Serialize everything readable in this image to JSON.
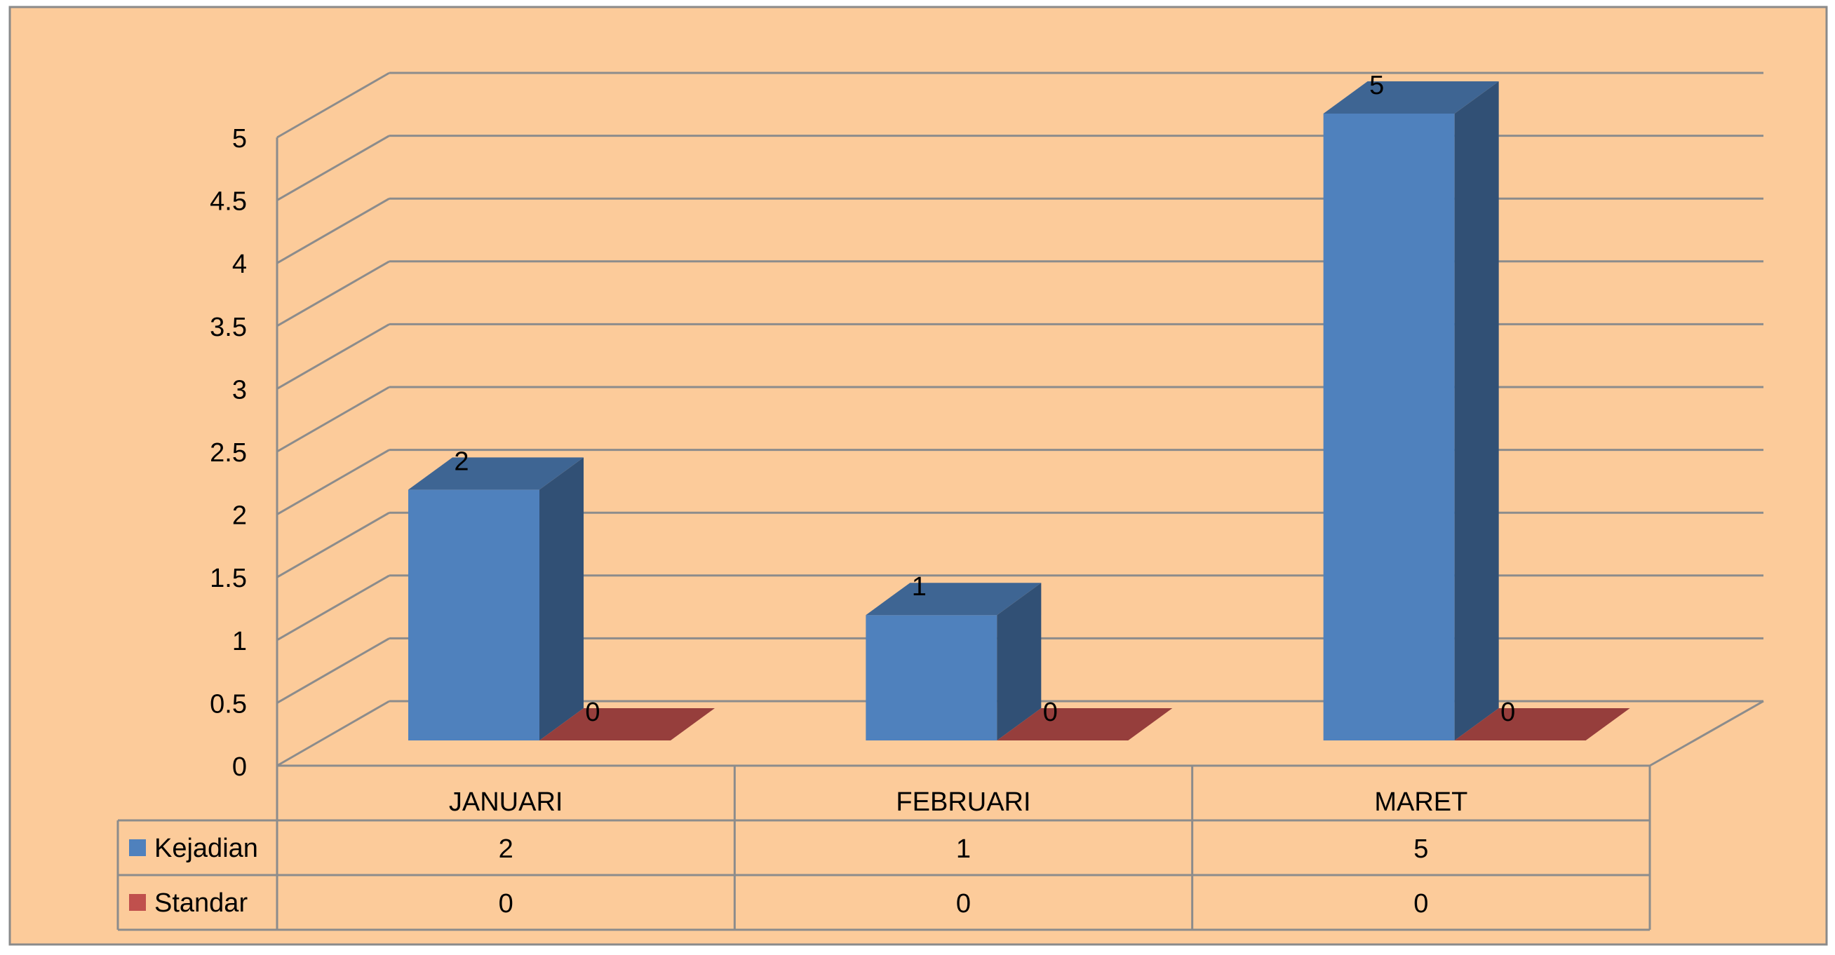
{
  "chart_data": {
    "type": "bar",
    "style": "3d-clustered-column-with-data-table",
    "categories": [
      "JANUARI",
      "FEBRUARI",
      "MARET"
    ],
    "series": [
      {
        "name": "Kejadian",
        "values": [
          2,
          1,
          5
        ],
        "color": "#4F81BD"
      },
      {
        "name": "Standar",
        "values": [
          0,
          0,
          0
        ],
        "color": "#C0504D"
      }
    ],
    "ylim": [
      0,
      5
    ],
    "yticks": [
      "0",
      "0.5",
      "1",
      "1.5",
      "2",
      "2.5",
      "3",
      "3.5",
      "4",
      "4.5",
      "5"
    ],
    "data_labels": true,
    "grid": true,
    "legend": "data-table-left",
    "colors": {
      "background": "#FCCB9A",
      "border": "#8A8A8A",
      "grid": "#8C8C8C"
    }
  }
}
